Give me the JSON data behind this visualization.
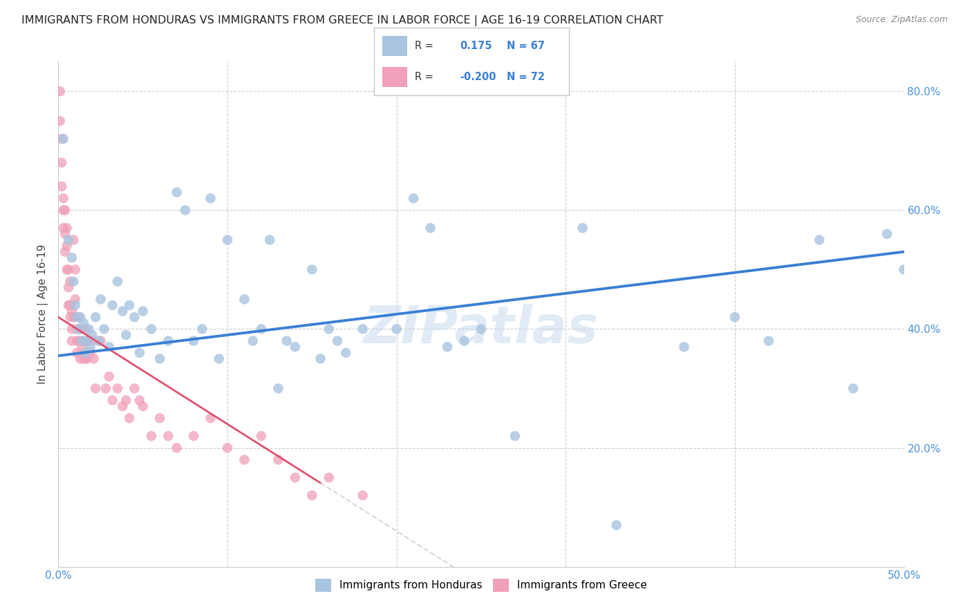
{
  "title": "IMMIGRANTS FROM HONDURAS VS IMMIGRANTS FROM GREECE IN LABOR FORCE | AGE 16-19 CORRELATION CHART",
  "source": "Source: ZipAtlas.com",
  "ylabel": "In Labor Force | Age 16-19",
  "xlim": [
    0.0,
    0.5
  ],
  "ylim": [
    0.0,
    0.85
  ],
  "x_ticks": [
    0.0,
    0.1,
    0.2,
    0.3,
    0.4,
    0.5
  ],
  "x_tick_labels": [
    "0.0%",
    "",
    "",
    "",
    "",
    "50.0%"
  ],
  "y_ticks_right": [
    0.2,
    0.4,
    0.6,
    0.8
  ],
  "y_tick_labels_right": [
    "20.0%",
    "40.0%",
    "60.0%",
    "80.0%"
  ],
  "color_honduras": "#a8c4e0",
  "color_greece": "#f0a0b8",
  "color_trendline_honduras": "#3a7fd5",
  "color_trendline_greece_solid": "#e05070",
  "color_trendline_greece_dash": "#c0c8d0",
  "watermark": "ZIPatlas",
  "honduras_x": [
    0.003,
    0.006,
    0.008,
    0.009,
    0.01,
    0.011,
    0.012,
    0.013,
    0.014,
    0.015,
    0.016,
    0.017,
    0.018,
    0.019,
    0.02,
    0.022,
    0.024,
    0.025,
    0.027,
    0.03,
    0.032,
    0.035,
    0.038,
    0.04,
    0.042,
    0.045,
    0.048,
    0.05,
    0.055,
    0.06,
    0.065,
    0.07,
    0.075,
    0.08,
    0.085,
    0.09,
    0.095,
    0.1,
    0.11,
    0.115,
    0.12,
    0.125,
    0.13,
    0.135,
    0.14,
    0.15,
    0.155,
    0.16,
    0.165,
    0.17,
    0.18,
    0.2,
    0.21,
    0.22,
    0.23,
    0.24,
    0.25,
    0.27,
    0.31,
    0.33,
    0.37,
    0.4,
    0.42,
    0.45,
    0.47,
    0.49,
    0.5
  ],
  "honduras_y": [
    0.72,
    0.55,
    0.52,
    0.48,
    0.44,
    0.42,
    0.4,
    0.42,
    0.38,
    0.41,
    0.36,
    0.38,
    0.4,
    0.37,
    0.39,
    0.42,
    0.38,
    0.45,
    0.4,
    0.37,
    0.44,
    0.48,
    0.43,
    0.39,
    0.44,
    0.42,
    0.36,
    0.43,
    0.4,
    0.35,
    0.38,
    0.63,
    0.6,
    0.38,
    0.4,
    0.62,
    0.35,
    0.55,
    0.45,
    0.38,
    0.4,
    0.55,
    0.3,
    0.38,
    0.37,
    0.5,
    0.35,
    0.4,
    0.38,
    0.36,
    0.4,
    0.4,
    0.62,
    0.57,
    0.37,
    0.38,
    0.4,
    0.22,
    0.57,
    0.07,
    0.37,
    0.42,
    0.38,
    0.55,
    0.3,
    0.56,
    0.5
  ],
  "greece_x": [
    0.001,
    0.001,
    0.002,
    0.002,
    0.002,
    0.003,
    0.003,
    0.003,
    0.004,
    0.004,
    0.004,
    0.005,
    0.005,
    0.005,
    0.006,
    0.006,
    0.006,
    0.007,
    0.007,
    0.007,
    0.008,
    0.008,
    0.008,
    0.009,
    0.009,
    0.01,
    0.01,
    0.01,
    0.011,
    0.011,
    0.011,
    0.012,
    0.012,
    0.013,
    0.013,
    0.014,
    0.014,
    0.015,
    0.015,
    0.016,
    0.016,
    0.017,
    0.018,
    0.019,
    0.02,
    0.021,
    0.022,
    0.025,
    0.028,
    0.03,
    0.032,
    0.035,
    0.038,
    0.04,
    0.042,
    0.045,
    0.048,
    0.05,
    0.055,
    0.06,
    0.065,
    0.07,
    0.08,
    0.09,
    0.1,
    0.11,
    0.12,
    0.13,
    0.14,
    0.15,
    0.16,
    0.18
  ],
  "greece_y": [
    0.8,
    0.75,
    0.72,
    0.68,
    0.64,
    0.62,
    0.6,
    0.57,
    0.6,
    0.56,
    0.53,
    0.57,
    0.54,
    0.5,
    0.5,
    0.47,
    0.44,
    0.48,
    0.44,
    0.42,
    0.43,
    0.4,
    0.38,
    0.55,
    0.42,
    0.5,
    0.45,
    0.42,
    0.4,
    0.38,
    0.36,
    0.42,
    0.38,
    0.4,
    0.35,
    0.4,
    0.37,
    0.38,
    0.35,
    0.4,
    0.35,
    0.35,
    0.38,
    0.36,
    0.38,
    0.35,
    0.3,
    0.38,
    0.3,
    0.32,
    0.28,
    0.3,
    0.27,
    0.28,
    0.25,
    0.3,
    0.28,
    0.27,
    0.22,
    0.25,
    0.22,
    0.2,
    0.22,
    0.25,
    0.2,
    0.18,
    0.22,
    0.18,
    0.15,
    0.12,
    0.15,
    0.12
  ]
}
